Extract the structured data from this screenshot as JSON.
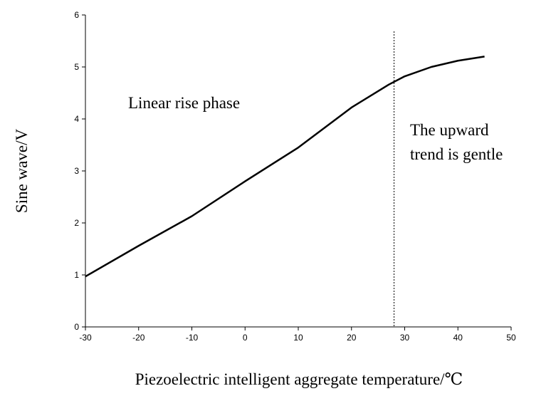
{
  "chart_data": {
    "type": "line",
    "x_label": "Piezoelectric intelligent aggregate temperature/℃",
    "y_label": "Sine wave/V",
    "annotations": [
      "Linear rise phase",
      "The upward",
      "trend is gentle"
    ],
    "x": [
      -30,
      -20,
      -10,
      0,
      10,
      20,
      27,
      30,
      35,
      40,
      45
    ],
    "series": [
      {
        "name": "Sine wave",
        "color": "#000000",
        "values": [
          0.97,
          1.56,
          2.13,
          2.8,
          3.45,
          4.22,
          4.66,
          4.82,
          5.0,
          5.12,
          5.2
        ]
      }
    ],
    "xlim": [
      -30,
      50
    ],
    "xticks": [
      -30,
      -20,
      -10,
      0,
      10,
      20,
      30,
      40,
      50
    ],
    "ylim": [
      0,
      6
    ],
    "yticks": [
      0,
      1,
      2,
      3,
      4,
      5,
      6
    ],
    "vline_x": 28,
    "grid": false
  }
}
